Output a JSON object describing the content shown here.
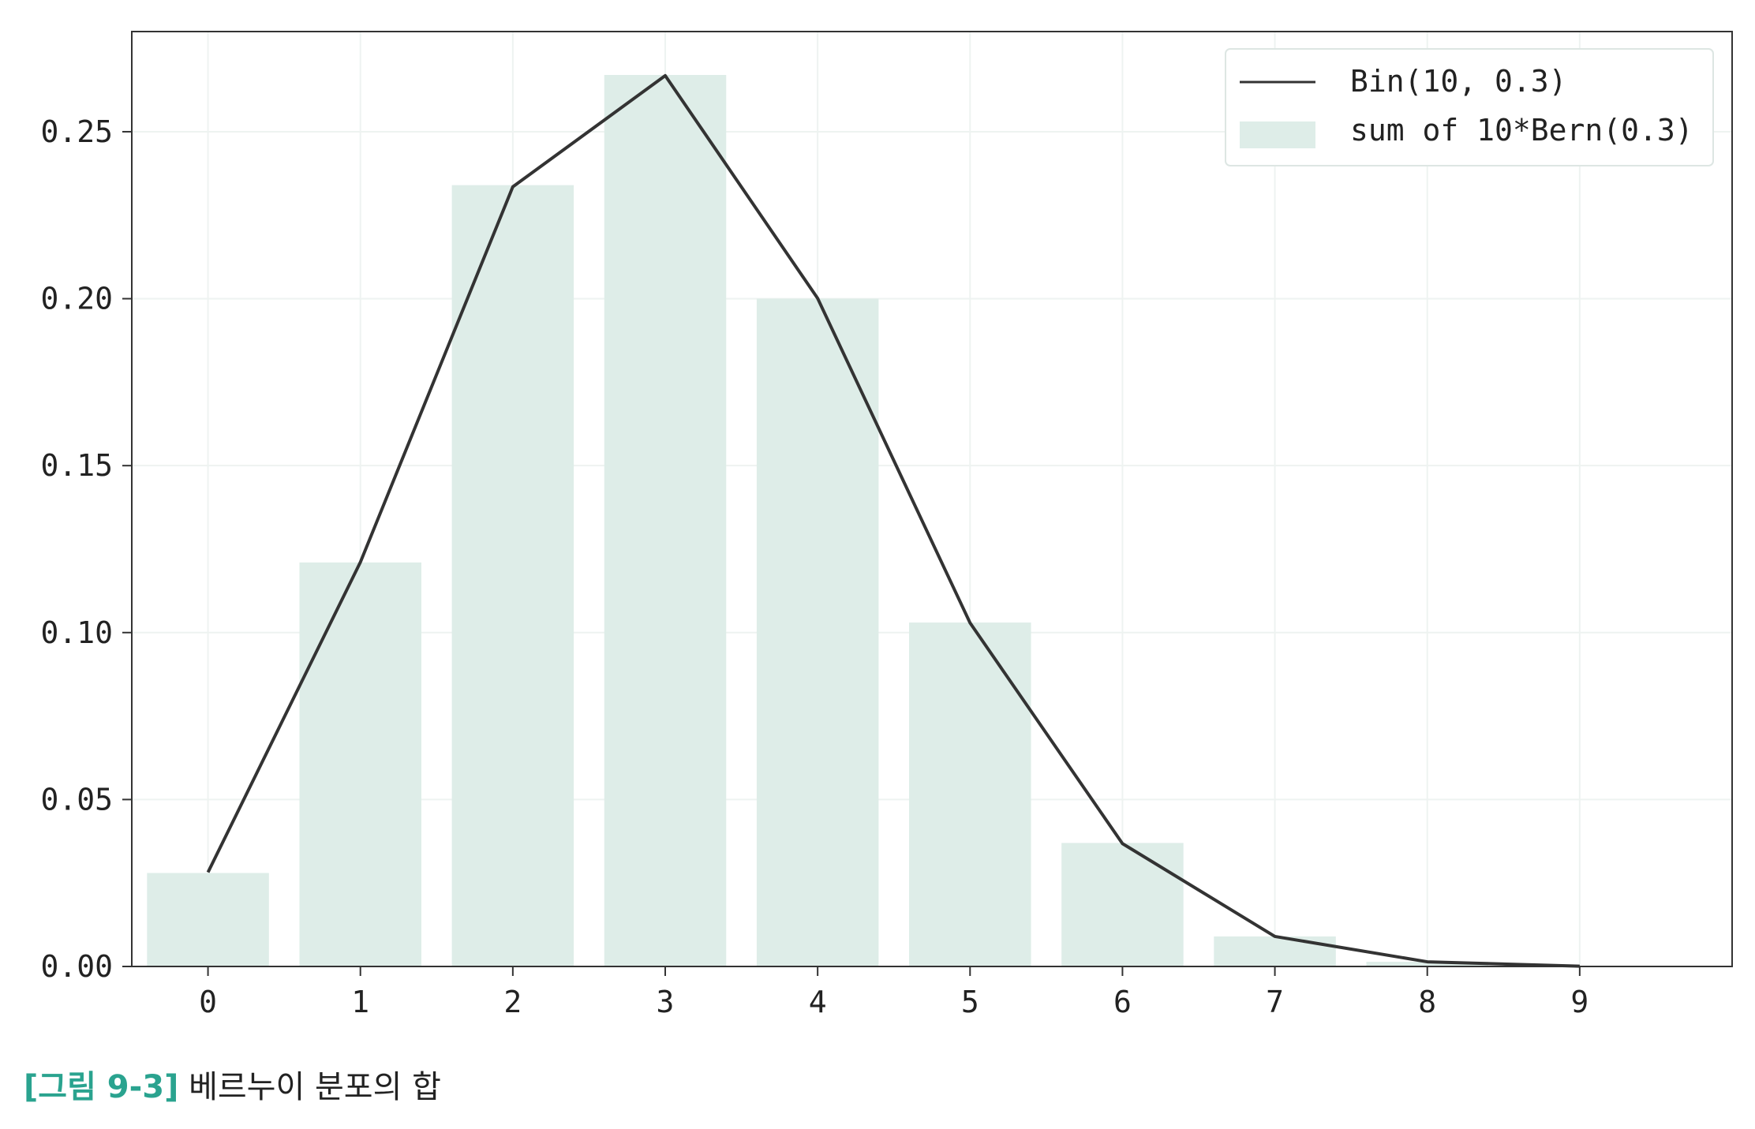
{
  "chart_data": {
    "type": "bar",
    "x": [
      0,
      1,
      2,
      3,
      4,
      5,
      6,
      7,
      8,
      9
    ],
    "series": [
      {
        "name": "sum of 10*Bern(0.3)",
        "kind": "bar",
        "values": [
          0.028,
          0.121,
          0.234,
          0.267,
          0.2,
          0.103,
          0.037,
          0.009,
          0.0014,
          0.0001
        ]
      },
      {
        "name": "Bin(10, 0.3)",
        "kind": "line",
        "values": [
          0.0282,
          0.1211,
          0.2335,
          0.2668,
          0.2001,
          0.1029,
          0.0368,
          0.009,
          0.0014,
          0.0001
        ]
      }
    ],
    "xticks": [
      "0",
      "1",
      "2",
      "3",
      "4",
      "5",
      "6",
      "7",
      "8",
      "9"
    ],
    "yticks": [
      "0.00",
      "0.05",
      "0.10",
      "0.15",
      "0.20",
      "0.25"
    ],
    "ylim": [
      0,
      0.28
    ],
    "xlim": [
      -0.5,
      10
    ],
    "grid": true,
    "legend_position": "top-right"
  },
  "caption": {
    "label": "[그림 9-3]",
    "text": " 베르누이 분포의 합"
  },
  "colors": {
    "bar": "#deede8",
    "line": "#333333",
    "axes": "#333333",
    "grid": "#eef3f1",
    "caption_label": "#2aa38f"
  }
}
